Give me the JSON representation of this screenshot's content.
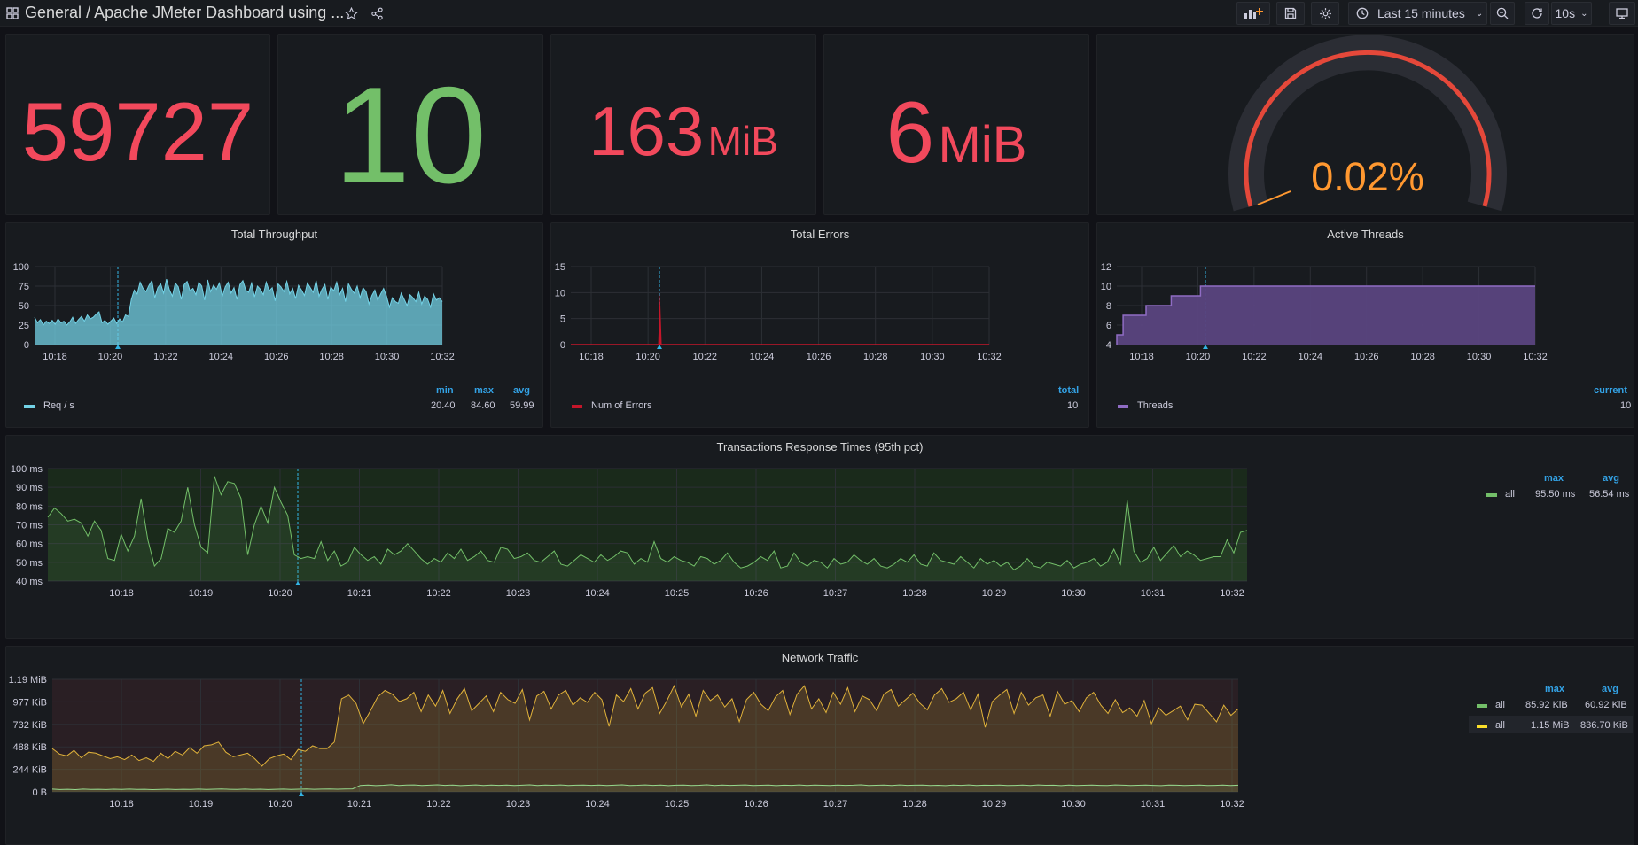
{
  "topbar": {
    "breadcrumb_folder": "General",
    "breadcrumb_sep": "/",
    "dashboard_title": "Apache JMeter Dashboard using ...",
    "time_range": "Last 15 minutes",
    "refresh_interval": "10s"
  },
  "stats": [
    {
      "value": "59727",
      "unit": "",
      "color": "#f2495c"
    },
    {
      "value": "10",
      "unit": "",
      "color": "#73bf69"
    },
    {
      "value": "163",
      "unit": "MiB",
      "color": "#f2495c"
    },
    {
      "value": "6",
      "unit": "MiB",
      "color": "#f2495c"
    }
  ],
  "gauge": {
    "value": "0.02%",
    "fraction": 0.02,
    "color": "#ff9830",
    "arc_color": "#e5483a"
  },
  "throughput": {
    "title": "Total Throughput",
    "legend": {
      "name": "Req / s",
      "headers": [
        "min",
        "max",
        "avg"
      ],
      "values": [
        "20.40",
        "84.60",
        "59.99"
      ],
      "color": "#73d2e6"
    },
    "chart_data": {
      "type": "area",
      "x_ticks": [
        "10:18",
        "10:20",
        "10:22",
        "10:24",
        "10:26",
        "10:28",
        "10:30",
        "10:32"
      ],
      "y_ticks": [
        "100",
        "75",
        "50",
        "25",
        "0"
      ],
      "ylim": [
        0,
        100
      ],
      "values": [
        35,
        28,
        32,
        25,
        30,
        27,
        31,
        26,
        33,
        28,
        30,
        25,
        29,
        35,
        27,
        32,
        36,
        30,
        38,
        33,
        35,
        39,
        42,
        28,
        31,
        26,
        30,
        34,
        27,
        33,
        29,
        38,
        36,
        58,
        70,
        65,
        80,
        72,
        68,
        76,
        82,
        60,
        73,
        78,
        66,
        84,
        70,
        62,
        79,
        74,
        58,
        77,
        81,
        69,
        72,
        64,
        80,
        75,
        57,
        83,
        68,
        76,
        71,
        79,
        62,
        74,
        80,
        66,
        73,
        58,
        77,
        82,
        70,
        67,
        79,
        61,
        75,
        71,
        64,
        80,
        69,
        73,
        56,
        78,
        74,
        68,
        81,
        65,
        72,
        59,
        76,
        70,
        63,
        79,
        73,
        67,
        82,
        62,
        71,
        77,
        58,
        74,
        69,
        80,
        64,
        72,
        55,
        78,
        71,
        66,
        75,
        60,
        73,
        68,
        52,
        63,
        70,
        57,
        65,
        72,
        62,
        48,
        60,
        55,
        53,
        66,
        58,
        50,
        64,
        60,
        55,
        67,
        52,
        62,
        58,
        48,
        65,
        57,
        60,
        55
      ]
    }
  },
  "errors": {
    "title": "Total Errors",
    "legend": {
      "name": "Num of Errors",
      "headers": [
        "total"
      ],
      "values": [
        "10"
      ],
      "color": "#c4162a"
    },
    "chart_data": {
      "type": "area",
      "x_ticks": [
        "10:18",
        "10:20",
        "10:22",
        "10:24",
        "10:26",
        "10:28",
        "10:30",
        "10:32"
      ],
      "y_ticks": [
        "15",
        "10",
        "5",
        "0"
      ],
      "ylim": [
        0,
        15
      ],
      "spike_at_fraction": 0.213,
      "spike_value": 10
    }
  },
  "threads": {
    "title": "Active Threads",
    "legend": {
      "name": "Threads",
      "headers": [
        "current"
      ],
      "values": [
        "10"
      ],
      "color": "#8f6cc4"
    },
    "chart_data": {
      "type": "area",
      "x_ticks": [
        "10:18",
        "10:20",
        "10:22",
        "10:24",
        "10:26",
        "10:28",
        "10:30",
        "10:32"
      ],
      "y_ticks": [
        "12",
        "10",
        "8",
        "6",
        "4"
      ],
      "ylim": [
        4,
        12
      ],
      "steps": [
        [
          0,
          5
        ],
        [
          0.015,
          7
        ],
        [
          0.07,
          8
        ],
        [
          0.13,
          9
        ],
        [
          0.2,
          10
        ],
        [
          1.0,
          10
        ]
      ]
    }
  },
  "response": {
    "title": "Transactions Response Times (95th pct)",
    "legend": {
      "headers": [
        "max",
        "avg"
      ],
      "rows": [
        {
          "name": "all",
          "values": [
            "95.50 ms",
            "56.54 ms"
          ],
          "color": "#73bf69"
        }
      ]
    },
    "chart_data": {
      "type": "line",
      "x_ticks": [
        "10:18",
        "10:19",
        "10:20",
        "10:21",
        "10:22",
        "10:23",
        "10:24",
        "10:25",
        "10:26",
        "10:27",
        "10:28",
        "10:29",
        "10:30",
        "10:31",
        "10:32"
      ],
      "y_ticks": [
        "100 ms",
        "90 ms",
        "80 ms",
        "70 ms",
        "60 ms",
        "50 ms",
        "40 ms"
      ],
      "ylim": [
        40,
        100
      ],
      "values": [
        74,
        79,
        76,
        72,
        73,
        71,
        64,
        72,
        67,
        52,
        51,
        65,
        56,
        64,
        84,
        62,
        48,
        52,
        68,
        66,
        72,
        90,
        70,
        58,
        55,
        96,
        86,
        93,
        92,
        84,
        54,
        70,
        80,
        71,
        90,
        82,
        75,
        54,
        52,
        53,
        52,
        61,
        51,
        56,
        48,
        50,
        58,
        54,
        51,
        53,
        49,
        57,
        54,
        56,
        60,
        56,
        52,
        49,
        52,
        50,
        55,
        52,
        57,
        51,
        53,
        56,
        51,
        50,
        58,
        57,
        52,
        53,
        55,
        51,
        50,
        53,
        56,
        49,
        48,
        51,
        54,
        52,
        50,
        54,
        51,
        53,
        56,
        55,
        49,
        52,
        50,
        61,
        52,
        50,
        53,
        51,
        50,
        48,
        53,
        52,
        49,
        51,
        55,
        50,
        47,
        48,
        50,
        53,
        51,
        56,
        47,
        48,
        55,
        50,
        48,
        51,
        50,
        47,
        52,
        49,
        50,
        54,
        51,
        49,
        52,
        48,
        47,
        49,
        52,
        50,
        54,
        49,
        48,
        55,
        51,
        50,
        49,
        53,
        50,
        47,
        52,
        49,
        51,
        48,
        50,
        46,
        48,
        52,
        48,
        47,
        50,
        49,
        48,
        51,
        47,
        49,
        50,
        52,
        48,
        50,
        57,
        49,
        83,
        56,
        50,
        52,
        58,
        51,
        55,
        59,
        53,
        56,
        54,
        51,
        52,
        53,
        53,
        62,
        55,
        66,
        67
      ]
    }
  },
  "network": {
    "title": "Network Traffic",
    "legend": {
      "headers": [
        "max",
        "avg"
      ],
      "rows": [
        {
          "name": "all",
          "values": [
            "85.92 KiB",
            "60.92 KiB"
          ],
          "color": "#73bf69"
        },
        {
          "name": "all",
          "values": [
            "1.15 MiB",
            "836.70 KiB"
          ],
          "color": "#fade2a"
        }
      ]
    },
    "chart_data": {
      "type": "line",
      "x_ticks": [
        "10:18",
        "10:19",
        "10:20",
        "10:21",
        "10:22",
        "10:23",
        "10:24",
        "10:25",
        "10:26",
        "10:27",
        "10:28",
        "10:29",
        "10:30",
        "10:31",
        "10:32"
      ],
      "y_ticks": [
        "1.19 MiB",
        "977 KiB",
        "732 KiB",
        "488 KiB",
        "244 KiB",
        "0 B"
      ],
      "ylim": [
        0,
        1220
      ],
      "series": [
        {
          "name": "all",
          "values": [
            470,
            410,
            390,
            450,
            370,
            430,
            420,
            390,
            360,
            380,
            350,
            400,
            340,
            370,
            330,
            420,
            360,
            440,
            400,
            480,
            420,
            500,
            510,
            540,
            430,
            380,
            400,
            420,
            360,
            280,
            360,
            390,
            410,
            350,
            460,
            440,
            500,
            470,
            470,
            540,
            1010,
            1050,
            960,
            740,
            880,
            1030,
            1100,
            1060,
            980,
            1010,
            1080,
            870,
            1050,
            930,
            1100,
            850,
            1010,
            1120,
            880,
            960,
            1040,
            870,
            1080,
            1000,
            960,
            1110,
            780,
            1040,
            1090,
            900,
            1050,
            1100,
            940,
            1020,
            970,
            1080,
            1000,
            710,
            1050,
            980,
            1120,
            900,
            1070,
            1130,
            850,
            990,
            1150,
            920,
            1060,
            820,
            1100,
            990,
            1050,
            920,
            1010,
            760,
            1000,
            1080,
            950,
            880,
            1030,
            1100,
            840,
            1060,
            1150,
            900,
            1010,
            860,
            1080,
            950,
            1130,
            870,
            1040,
            1000,
            880,
            1060,
            1110,
            930,
            1000,
            1070,
            960,
            890,
            1050,
            1120,
            970,
            1010,
            1080,
            890,
            1060,
            700,
            980,
            1050,
            1110,
            850,
            1080,
            940,
            1020,
            1050,
            820,
            1090,
            950,
            990,
            870,
            1020,
            1080,
            940,
            850,
            1000,
            860,
            910,
            820,
            990,
            740,
            910,
            830,
            880,
            930,
            780,
            950,
            940,
            850,
            760,
            940,
            830,
            900
          ],
          "color": "#e0b23a"
        },
        {
          "name": "all",
          "values": [
            30,
            25,
            28,
            24,
            30,
            26,
            28,
            25,
            29,
            27,
            30,
            26,
            28,
            24,
            27,
            29,
            25,
            28,
            26,
            30,
            27,
            29,
            31,
            28,
            26,
            30,
            27,
            29,
            25,
            28,
            30,
            27,
            29,
            31,
            28,
            30,
            32,
            29,
            31,
            33,
            70,
            75,
            68,
            72,
            78,
            70,
            74,
            76,
            69,
            73,
            77,
            71,
            75,
            68,
            72,
            76,
            70,
            74,
            71,
            75,
            69,
            73,
            77,
            70,
            74,
            72,
            76,
            70,
            73,
            75,
            71,
            74,
            69,
            73,
            77,
            70,
            72,
            76,
            71,
            74,
            68,
            73,
            75,
            70,
            72,
            77,
            69,
            74,
            71,
            73,
            76,
            70,
            72,
            75,
            68,
            73,
            71,
            76,
            70,
            74,
            72,
            69,
            75,
            71,
            73,
            77,
            70,
            72,
            74,
            69,
            76,
            71,
            73,
            75,
            70,
            72,
            68,
            74,
            71,
            76,
            70,
            73,
            72,
            75,
            69,
            71,
            74,
            70,
            76,
            72,
            73,
            68,
            75,
            70,
            72,
            74,
            71,
            69,
            76,
            73,
            70,
            72,
            75,
            71,
            68,
            74,
            73,
            70,
            72,
            75,
            69,
            71,
            74,
            70,
            73
          ],
          "color": "#96d98d"
        }
      ]
    }
  }
}
